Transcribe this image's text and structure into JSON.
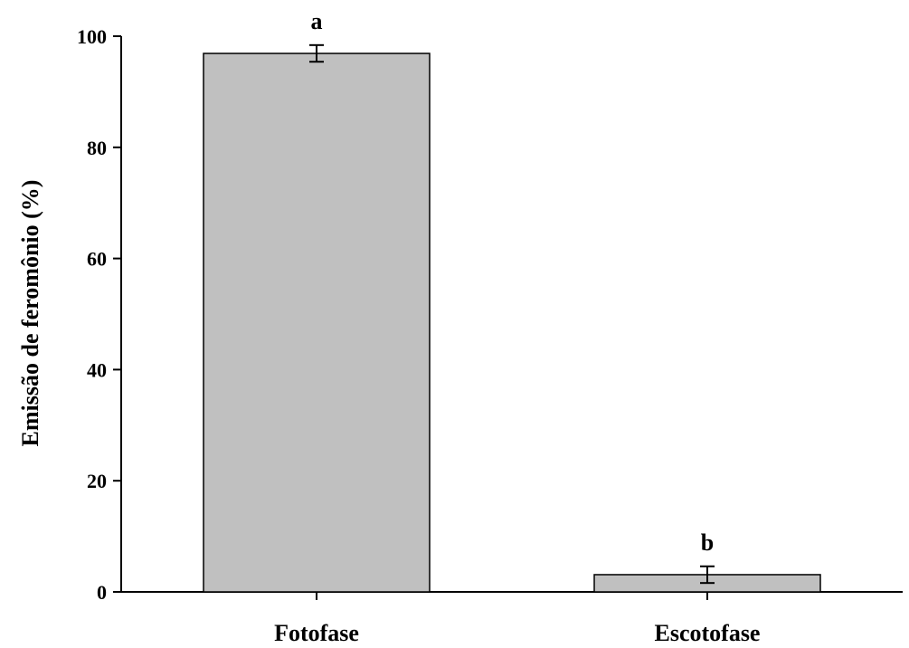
{
  "chart_data": {
    "type": "bar",
    "title": "",
    "xlabel": "",
    "ylabel": "Emissão de feromônio (%)",
    "ylim": [
      0,
      100
    ],
    "yticks": [
      0,
      20,
      40,
      60,
      80,
      100
    ],
    "categories": [
      "Fotofase",
      "Escotofase"
    ],
    "values": [
      96.9,
      3.1
    ],
    "errors": [
      1.5,
      1.5
    ],
    "significance_letters": [
      "a",
      "b"
    ],
    "bar_color": "#c0c0c0",
    "bar_edge_color": "#000000",
    "grid": false,
    "legend": "none"
  }
}
